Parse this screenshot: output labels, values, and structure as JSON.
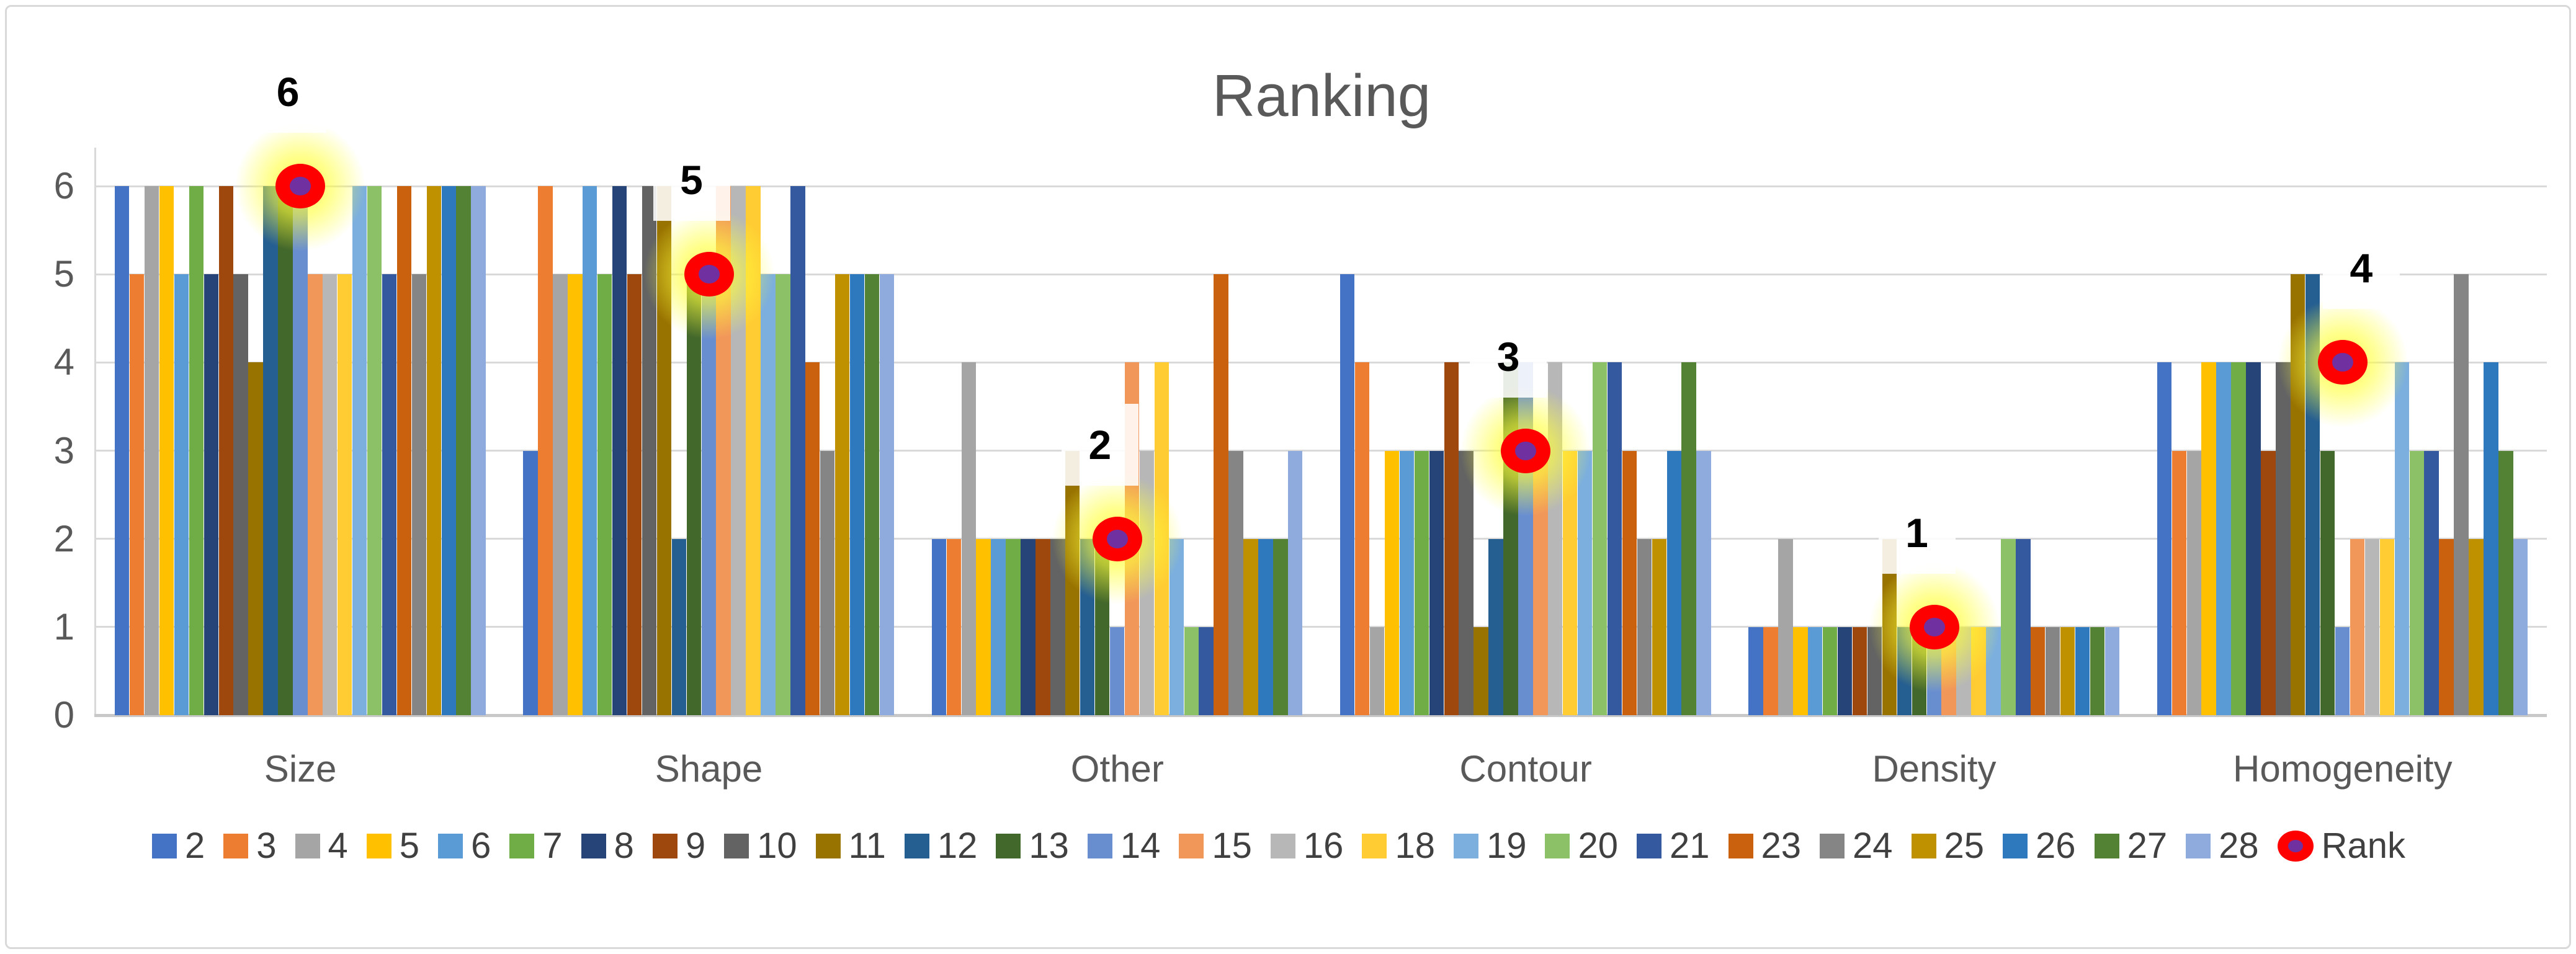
{
  "chart_data": {
    "type": "bar",
    "title": "Ranking",
    "categories": [
      "Size",
      "Shape",
      "Other",
      "Contour",
      "Density",
      "Homogeneity"
    ],
    "y_axis": {
      "min": 0,
      "max": 6,
      "ticks": [
        "0",
        "1",
        "2",
        "3",
        "4",
        "5",
        "6"
      ]
    },
    "grid": true,
    "legend_position": "bottom",
    "series": [
      {
        "name": "2",
        "color": "#4472C4",
        "values": [
          6,
          3,
          2,
          5,
          1,
          4
        ]
      },
      {
        "name": "3",
        "color": "#ED7D31",
        "values": [
          5,
          6,
          2,
          4,
          1,
          3
        ]
      },
      {
        "name": "4",
        "color": "#A5A5A5",
        "values": [
          6,
          5,
          4,
          1,
          2,
          3
        ]
      },
      {
        "name": "5",
        "color": "#FFC000",
        "values": [
          6,
          5,
          2,
          3,
          1,
          4
        ]
      },
      {
        "name": "6",
        "color": "#5B9BD5",
        "values": [
          5,
          6,
          2,
          3,
          1,
          4
        ]
      },
      {
        "name": "7",
        "color": "#70AD47",
        "values": [
          6,
          5,
          2,
          3,
          1,
          4
        ]
      },
      {
        "name": "8",
        "color": "#264478",
        "values": [
          5,
          6,
          2,
          3,
          1,
          4
        ]
      },
      {
        "name": "9",
        "color": "#9E480E",
        "values": [
          6,
          5,
          2,
          4,
          1,
          3
        ]
      },
      {
        "name": "10",
        "color": "#636363",
        "values": [
          5,
          6,
          2,
          3,
          1,
          4
        ]
      },
      {
        "name": "11",
        "color": "#997300",
        "values": [
          4,
          6,
          3,
          1,
          2,
          5
        ]
      },
      {
        "name": "12",
        "color": "#255E91",
        "values": [
          6,
          2,
          2,
          2,
          1,
          5
        ]
      },
      {
        "name": "13",
        "color": "#43682B",
        "values": [
          6,
          5,
          2,
          4,
          1,
          3
        ]
      },
      {
        "name": "14",
        "color": "#698ED0",
        "values": [
          6,
          5,
          1,
          4,
          1,
          1
        ]
      },
      {
        "name": "15",
        "color": "#F1975A",
        "values": [
          5,
          6,
          4,
          3,
          1,
          2
        ]
      },
      {
        "name": "16",
        "color": "#B7B7B7",
        "values": [
          5,
          6,
          3,
          4,
          1,
          2
        ]
      },
      {
        "name": "18",
        "color": "#FFCD33",
        "values": [
          5,
          6,
          4,
          3,
          1,
          2
        ]
      },
      {
        "name": "19",
        "color": "#7CAFDD",
        "values": [
          6,
          5,
          2,
          3,
          1,
          4
        ]
      },
      {
        "name": "20",
        "color": "#8CC168",
        "values": [
          6,
          5,
          1,
          4,
          2,
          3
        ]
      },
      {
        "name": "21",
        "color": "#35599F",
        "values": [
          5,
          6,
          1,
          4,
          2,
          3
        ]
      },
      {
        "name": "23",
        "color": "#C9610F",
        "values": [
          6,
          4,
          5,
          3,
          1,
          2
        ]
      },
      {
        "name": "24",
        "color": "#858585",
        "values": [
          5,
          3,
          3,
          2,
          1,
          5
        ]
      },
      {
        "name": "25",
        "color": "#BF9000",
        "values": [
          6,
          5,
          2,
          2,
          1,
          2
        ]
      },
      {
        "name": "26",
        "color": "#2E79BE",
        "values": [
          6,
          5,
          2,
          3,
          1,
          4
        ]
      },
      {
        "name": "27",
        "color": "#548235",
        "values": [
          6,
          5,
          2,
          4,
          1,
          3
        ]
      },
      {
        "name": "28",
        "color": "#8FAADC",
        "values": [
          6,
          5,
          3,
          3,
          1,
          2
        ]
      }
    ],
    "rank_series": {
      "name": "Rank",
      "values": [
        6,
        5,
        2,
        3,
        1,
        4
      ],
      "labels": [
        "6",
        "5",
        "2",
        "3",
        "1",
        "4"
      ],
      "marker_fill": "#FF0000",
      "marker_center": "#7030A0",
      "marker_glow": "#FFFF3C"
    }
  },
  "colors": {
    "background": "#FFFFFF",
    "border": "#D9D9D9",
    "gridline": "#D9D9D9",
    "zero_line": "#C8C8C8",
    "title_text": "#595959",
    "axis_text": "#595959",
    "legend_text": "#404040",
    "rank_label_text": "#000000"
  }
}
